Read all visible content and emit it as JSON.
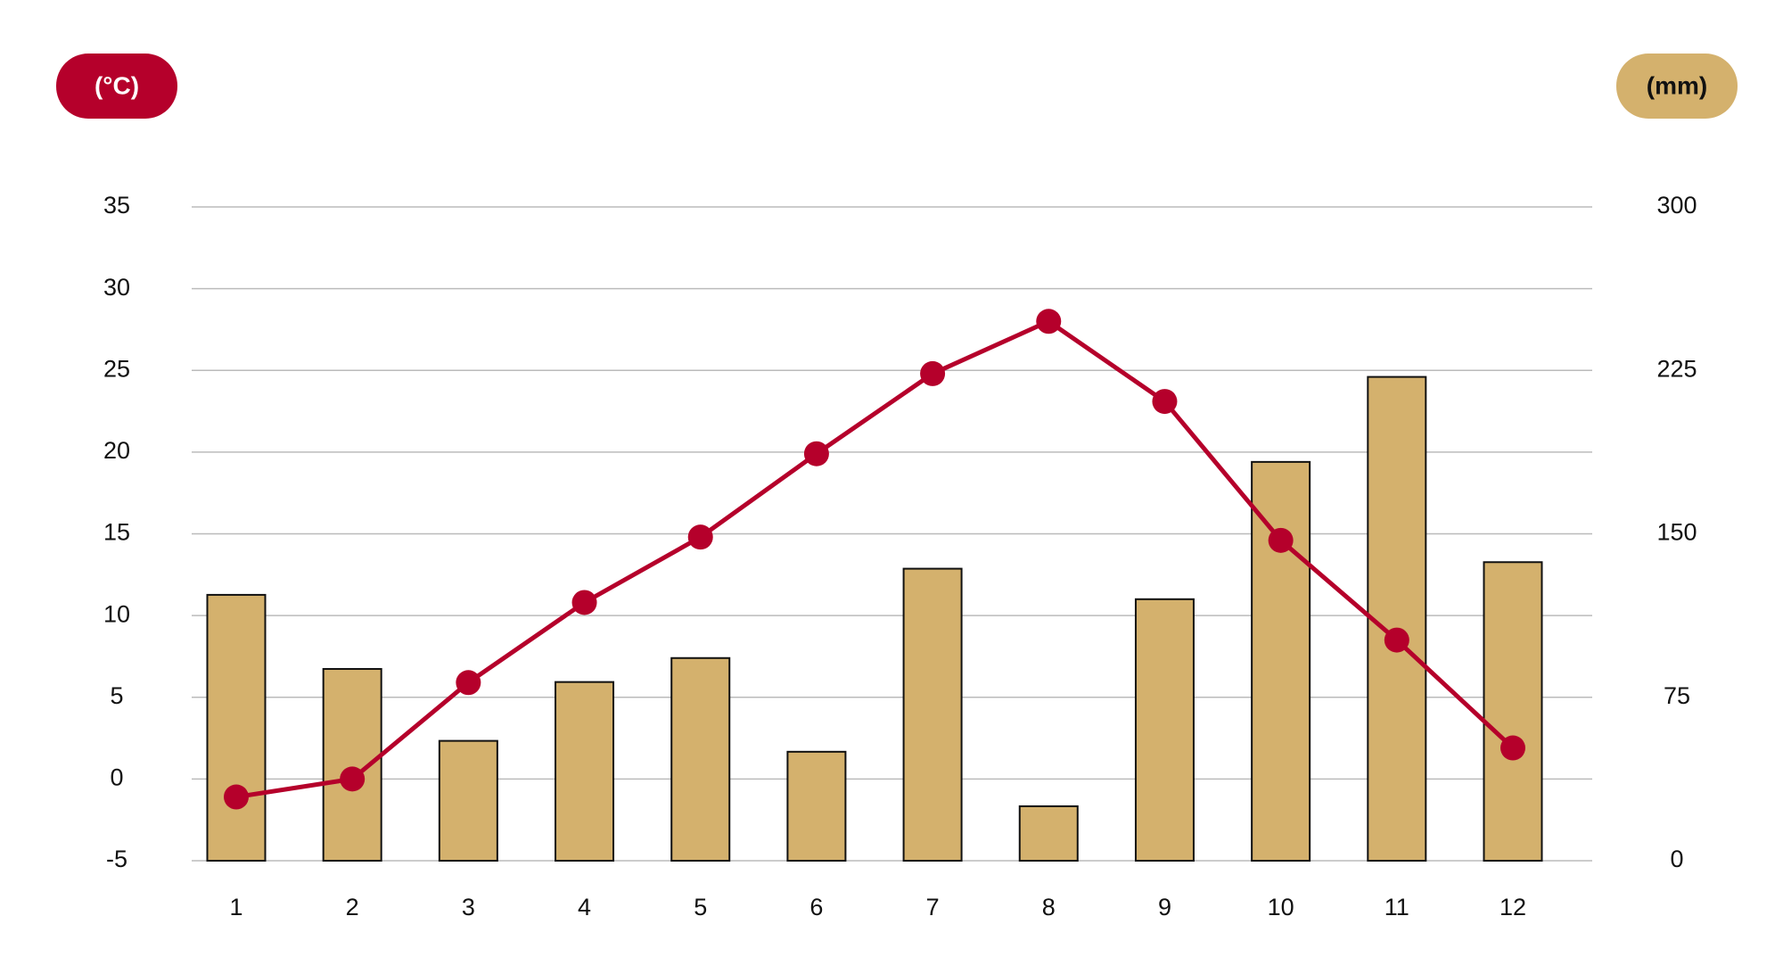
{
  "chart_data": {
    "type": "combo",
    "y_label": "(°C)",
    "y2_label": "(mm)",
    "categories": [
      "1",
      "2",
      "3",
      "4",
      "5",
      "6",
      "7",
      "8",
      "9",
      "10",
      "11",
      "12"
    ],
    "series": [
      {
        "type": "bar",
        "axis": "y2",
        "color": "#d4b16d",
        "values": [
          122,
          88,
          55,
          82,
          93,
          50,
          134,
          25,
          120,
          183,
          222,
          137
        ]
      },
      {
        "type": "line",
        "axis": "y",
        "color": "#b5002b",
        "values": [
          -1.1,
          0,
          5.9,
          10.8,
          14.8,
          19.9,
          24.8,
          28.0,
          23.1,
          14.6,
          8.5,
          1.9
        ]
      }
    ],
    "ylim": [
      -5,
      35
    ],
    "yticks": [
      -5,
      0,
      5,
      10,
      15,
      20,
      25,
      30,
      35
    ],
    "y2lim": [
      0,
      300
    ],
    "y2ticks": [
      0,
      75,
      150,
      225,
      300
    ],
    "grid": true
  }
}
